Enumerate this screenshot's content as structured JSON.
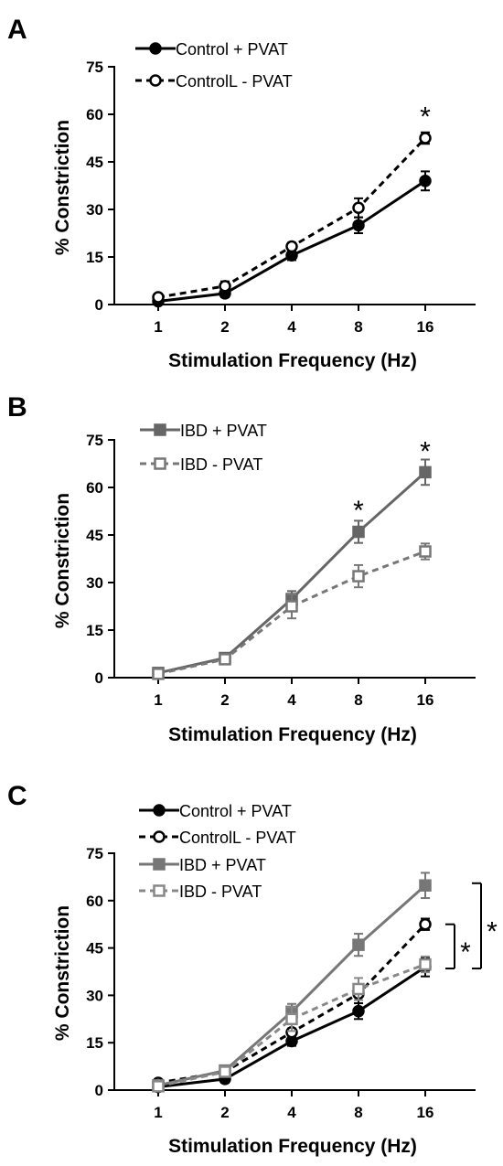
{
  "panels": [
    {
      "letter": "A",
      "star": "*",
      "chart_data": {
        "type": "line",
        "categories": [
          "1",
          "2",
          "4",
          "8",
          "16"
        ],
        "ylim": [
          0,
          75
        ],
        "yticks": [
          0,
          15,
          30,
          45,
          60,
          75
        ],
        "xlabel": "Stimulation Frequency (Hz)",
        "ylabel": "% Constriction",
        "legend_position": "top-left",
        "series": [
          {
            "name": "Control + PVAT",
            "marker": "circle-filled",
            "dash": false,
            "color": "#000000",
            "values": [
              1.0,
              3.5,
              15.5,
              25.0,
              39.0
            ],
            "errors": [
              0.5,
              1.2,
              1.5,
              2.5,
              3.0
            ]
          },
          {
            "name": "ControlL - PVAT",
            "marker": "circle-open",
            "dash": true,
            "color": "#000000",
            "values": [
              2.3,
              5.8,
              18.3,
              30.5,
              52.5
            ],
            "errors": [
              0.5,
              1.5,
              1.2,
              3.0,
              1.8
            ]
          }
        ],
        "significance": [
          {
            "category": "16",
            "value": 60.5
          }
        ]
      }
    },
    {
      "letter": "B",
      "star": "*",
      "chart_data": {
        "type": "line",
        "categories": [
          "1",
          "2",
          "4",
          "8",
          "16"
        ],
        "ylim": [
          0,
          75
        ],
        "yticks": [
          0,
          15,
          30,
          45,
          60,
          75
        ],
        "xlabel": "Stimulation Frequency (Hz)",
        "ylabel": "% Constriction",
        "legend_position": "top-left",
        "series": [
          {
            "name": "IBD + PVAT",
            "marker": "square-filled",
            "dash": false,
            "color": "#666666",
            "values": [
              1.5,
              6.2,
              24.8,
              46.0,
              64.8
            ],
            "errors": [
              0.5,
              0.8,
              2.5,
              3.5,
              4.0
            ]
          },
          {
            "name": "IBD - PVAT",
            "marker": "square-open",
            "dash": true,
            "color": "#777777",
            "values": [
              1.2,
              5.8,
              22.5,
              32.0,
              39.8
            ],
            "errors": [
              0.4,
              1.0,
              3.8,
              3.5,
              2.5
            ]
          }
        ],
        "significance": [
          {
            "category": "8",
            "value": 54.0
          },
          {
            "category": "16",
            "value": 72.5
          }
        ]
      }
    },
    {
      "letter": "C",
      "star": "*",
      "chart_data": {
        "type": "line",
        "categories": [
          "1",
          "2",
          "4",
          "8",
          "16"
        ],
        "ylim": [
          0,
          75
        ],
        "yticks": [
          0,
          15,
          30,
          45,
          60,
          75
        ],
        "xlabel": "Stimulation Frequency (Hz)",
        "ylabel": "% Constriction",
        "legend_position": "top-left",
        "series": [
          {
            "name": "Control + PVAT",
            "marker": "circle-filled",
            "dash": false,
            "color": "#000000",
            "values": [
              1.0,
              3.5,
              15.5,
              25.0,
              39.0
            ],
            "errors": [
              0.5,
              1.2,
              1.5,
              2.5,
              3.0
            ]
          },
          {
            "name": "ControlL - PVAT",
            "marker": "circle-open",
            "dash": true,
            "color": "#000000",
            "values": [
              2.3,
              5.8,
              18.3,
              30.5,
              52.5
            ],
            "errors": [
              0.5,
              1.5,
              1.2,
              3.0,
              1.8
            ]
          },
          {
            "name": "IBD + PVAT",
            "marker": "square-filled",
            "dash": false,
            "color": "#777777",
            "values": [
              1.5,
              6.2,
              24.8,
              46.0,
              64.8
            ],
            "errors": [
              0.5,
              0.8,
              2.5,
              3.5,
              4.0
            ]
          },
          {
            "name": "IBD - PVAT",
            "marker": "square-open",
            "dash": true,
            "color": "#888888",
            "values": [
              1.2,
              5.8,
              22.5,
              32.0,
              39.8
            ],
            "errors": [
              0.4,
              1.0,
              3.8,
              3.5,
              2.5
            ]
          }
        ],
        "brackets": [
          {
            "from": 52.5,
            "to": 38.5,
            "label": "*"
          },
          {
            "from": 65.5,
            "to": 38.5,
            "label": "*"
          }
        ]
      }
    }
  ]
}
